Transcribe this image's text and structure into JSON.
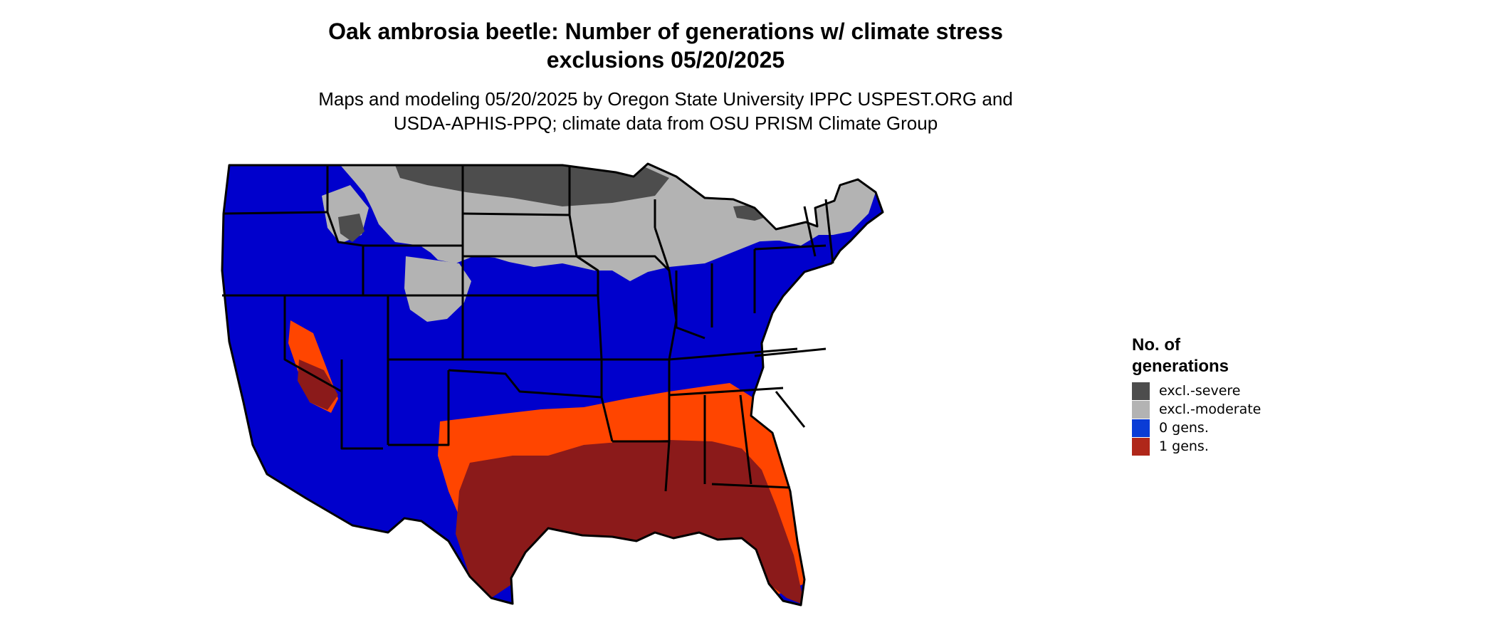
{
  "title": {
    "line1": "Oak ambrosia beetle: Number of generations w/ climate stress",
    "line2": "exclusions 05/20/2025"
  },
  "subtitle": {
    "line1": "Maps and modeling 05/20/2025 by Oregon State University IPPC USPEST.ORG and",
    "line2": "USDA-APHIS-PPQ; climate data from OSU PRISM Climate Group"
  },
  "legend": {
    "title_line1": "No. of",
    "title_line2": "generations",
    "items": [
      {
        "label": "excl.-severe",
        "color": "#4d4d4d"
      },
      {
        "label": "excl.-moderate",
        "color": "#b3b3b3"
      },
      {
        "label": "0 gens.",
        "color": "#0a3cd6"
      },
      {
        "label": "1 gens.",
        "color": "#b0271a"
      }
    ]
  },
  "colors": {
    "zero_gens_map": "#0000cc",
    "one_gens_orange": "#ff4500",
    "one_gens_red": "#8b1a1a",
    "excl_moderate": "#b3b3b3",
    "excl_severe": "#4d4d4d",
    "state_border": "#000000"
  }
}
